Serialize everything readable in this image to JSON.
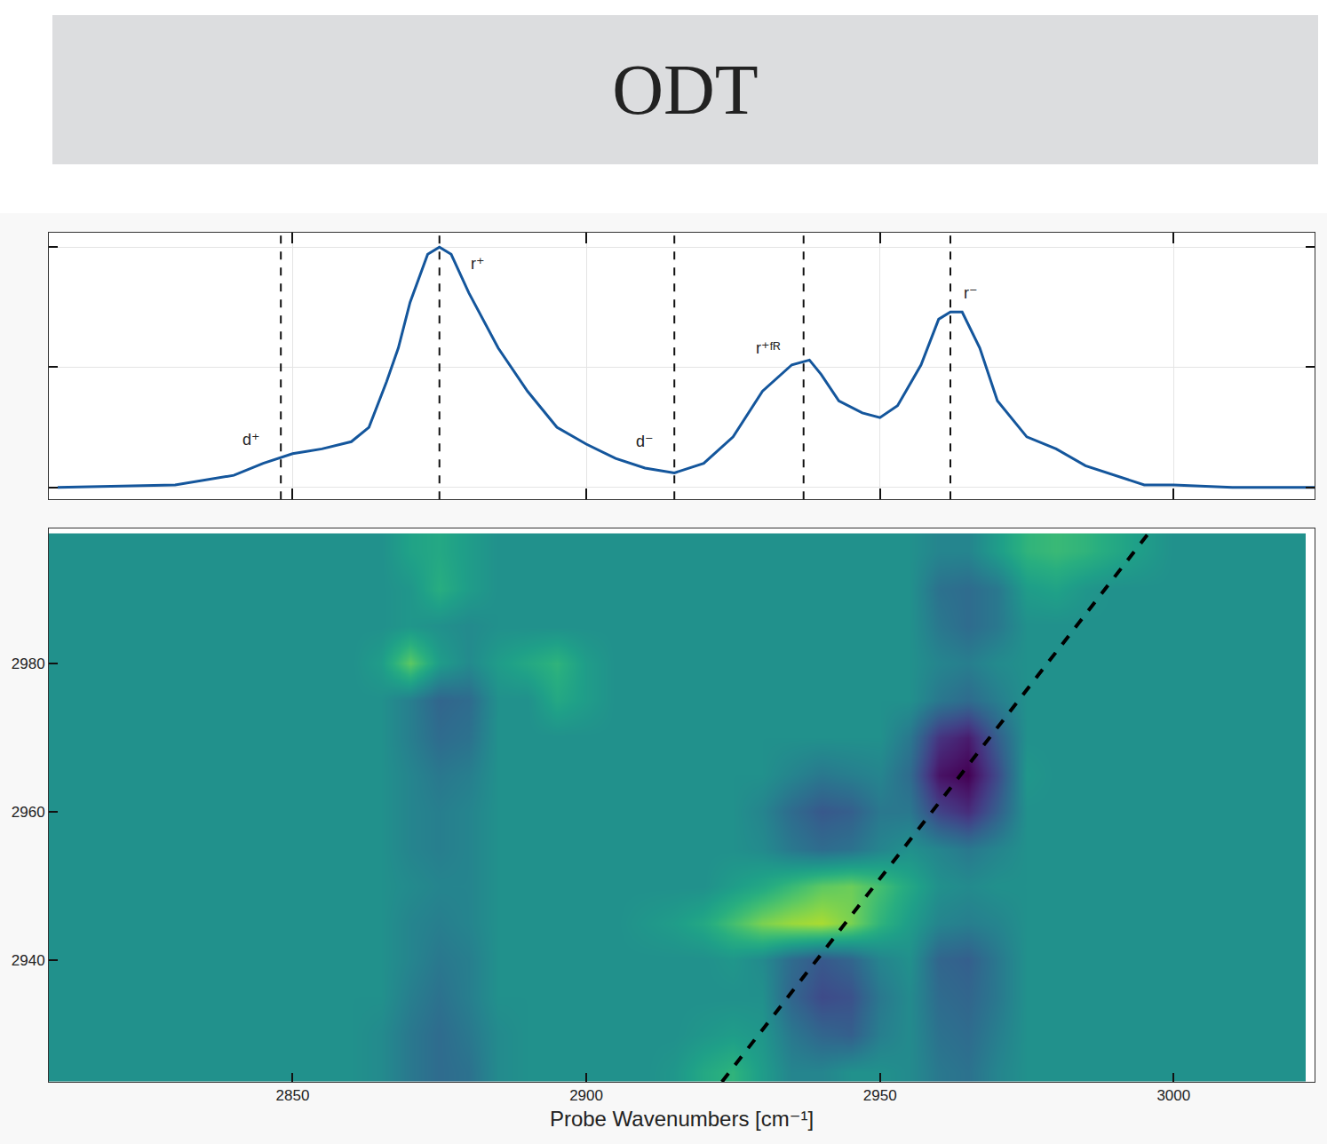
{
  "title": "ODT",
  "chart_data": [
    {
      "type": "line",
      "x": [
        2810,
        2830,
        2840,
        2845,
        2850,
        2855,
        2860,
        2863,
        2866,
        2868,
        2870,
        2873,
        2875,
        2877,
        2880,
        2885,
        2890,
        2895,
        2900,
        2905,
        2910,
        2915,
        2920,
        2925,
        2930,
        2935,
        2938,
        2940,
        2943,
        2947,
        2950,
        2953,
        2957,
        2960,
        2962,
        2964,
        2967,
        2970,
        2975,
        2980,
        2985,
        2990,
        2995,
        3000,
        3010,
        3024
      ],
      "values": [
        0,
        0.01,
        0.05,
        0.1,
        0.14,
        0.16,
        0.19,
        0.25,
        0.44,
        0.58,
        0.77,
        0.97,
        1.0,
        0.97,
        0.81,
        0.58,
        0.4,
        0.25,
        0.18,
        0.12,
        0.08,
        0.06,
        0.1,
        0.21,
        0.4,
        0.51,
        0.53,
        0.47,
        0.36,
        0.31,
        0.29,
        0.34,
        0.51,
        0.7,
        0.73,
        0.73,
        0.58,
        0.36,
        0.21,
        0.16,
        0.09,
        0.05,
        0.01,
        0.01,
        0,
        0
      ],
      "color": "#14569c",
      "xlim": [
        2808.5,
        3024
      ],
      "xticks": [
        2850,
        2900,
        2950,
        3000
      ],
      "ylim": [
        -0.05,
        1.06
      ],
      "yticks": [
        0,
        0.5,
        1
      ],
      "grid": true,
      "tick_labels": false,
      "vlines": [
        {
          "x": 2848,
          "label": "d⁺",
          "label_x": 2843,
          "label_y": 0.2
        },
        {
          "x": 2875,
          "label": "r⁺",
          "label_x": 2881.5,
          "label_y": 0.93
        },
        {
          "x": 2915,
          "label": "d⁻",
          "label_x": 2910,
          "label_y": 0.19
        },
        {
          "x": 2937,
          "label": "r⁺ᶠᴿ",
          "label_x": 2931,
          "label_y": 0.58
        },
        {
          "x": 2962,
          "label": "r⁻",
          "label_x": 2965.5,
          "label_y": 0.81
        }
      ]
    },
    {
      "type": "heatmap",
      "xlabel": "Probe Wavenumbers [cm⁻¹]",
      "x": [
        2810,
        2815,
        2820,
        2825,
        2830,
        2835,
        2840,
        2845,
        2850,
        2855,
        2860,
        2865,
        2870,
        2875,
        2880,
        2885,
        2890,
        2895,
        2900,
        2905,
        2910,
        2915,
        2920,
        2925,
        2930,
        2935,
        2940,
        2945,
        2950,
        2955,
        2960,
        2965,
        2970,
        2975,
        2980,
        2985,
        2990,
        2995,
        3000,
        3005,
        3010,
        3015,
        3020
      ],
      "y": [
        2925,
        2930,
        2935,
        2940,
        2945,
        2950,
        2955,
        2960,
        2965,
        2970,
        2975,
        2980,
        2985,
        2990,
        2995
      ],
      "cells": [
        [
          0,
          0,
          0,
          0,
          0,
          0,
          0,
          0,
          0,
          0,
          0,
          -0.05,
          -0.2,
          -0.3,
          -0.25,
          -0.05,
          0,
          0,
          0,
          0,
          0,
          0.05,
          0.2,
          0.3,
          0.1,
          -0.1,
          -0.1,
          0,
          0,
          -0.05,
          -0.2,
          -0.25,
          -0.1,
          0,
          0,
          0,
          0,
          0,
          0,
          0,
          0,
          0,
          0
        ],
        [
          0,
          0,
          0,
          0,
          0,
          0,
          0,
          0,
          0,
          0,
          0,
          -0.05,
          -0.2,
          -0.3,
          -0.2,
          -0.05,
          0,
          0,
          0,
          0,
          0,
          0,
          0.05,
          0.1,
          0.05,
          -0.2,
          -0.35,
          -0.4,
          -0.15,
          -0.05,
          -0.25,
          -0.3,
          -0.15,
          0,
          0,
          0,
          0,
          0,
          0,
          0,
          0,
          0,
          0
        ],
        [
          0,
          0,
          0,
          0,
          0,
          0,
          0,
          0,
          0,
          0,
          0,
          0,
          -0.15,
          -0.25,
          -0.15,
          0,
          0,
          0,
          0,
          0,
          0,
          0,
          0,
          0,
          0,
          -0.35,
          -0.55,
          -0.5,
          -0.2,
          -0.05,
          -0.3,
          -0.35,
          -0.2,
          0,
          0,
          0,
          0,
          0,
          0,
          0,
          0,
          0,
          0
        ],
        [
          0,
          0,
          0,
          0,
          0,
          0,
          0,
          0,
          0,
          0,
          0,
          0,
          -0.1,
          -0.2,
          -0.15,
          0,
          0,
          0,
          0,
          0,
          0,
          0,
          0,
          0.05,
          -0.05,
          -0.3,
          -0.45,
          -0.35,
          -0.1,
          0,
          -0.35,
          -0.4,
          -0.2,
          0,
          0,
          0,
          0,
          0,
          0,
          0,
          0,
          0,
          0
        ],
        [
          0,
          0,
          0,
          0,
          0,
          0,
          0,
          0,
          0,
          0,
          0,
          0,
          -0.1,
          -0.15,
          -0.1,
          0,
          0,
          0,
          0,
          0,
          0.05,
          0.1,
          0.2,
          0.4,
          0.6,
          0.7,
          0.75,
          0.6,
          0.3,
          0.1,
          -0.1,
          -0.15,
          -0.1,
          0,
          0,
          0,
          0,
          0,
          0,
          0,
          0,
          0,
          0
        ],
        [
          0,
          0,
          0,
          0,
          0,
          0,
          0,
          0,
          0,
          0,
          0,
          0,
          -0.05,
          -0.1,
          -0.1,
          0,
          0,
          0,
          0,
          0,
          0,
          0,
          0,
          0.1,
          0.2,
          0.35,
          0.5,
          0.55,
          0.4,
          0.2,
          0,
          -0.05,
          0,
          0,
          0,
          0,
          0,
          0,
          0,
          0,
          0,
          0,
          0
        ],
        [
          0,
          0,
          0,
          0,
          0,
          0,
          0,
          0,
          0,
          0,
          0,
          0,
          -0.1,
          -0.15,
          -0.1,
          0,
          0,
          0,
          0,
          0,
          0,
          0,
          0,
          0,
          -0.05,
          -0.2,
          -0.3,
          -0.25,
          -0.1,
          0,
          -0.1,
          -0.2,
          -0.1,
          0,
          0,
          0,
          0,
          0,
          0,
          0,
          0,
          0,
          0
        ],
        [
          0,
          0,
          0,
          0,
          0,
          0,
          0,
          0,
          0,
          0,
          0,
          0,
          -0.1,
          -0.15,
          -0.1,
          0,
          0,
          0,
          0,
          0,
          0,
          0,
          0,
          0,
          -0.1,
          -0.3,
          -0.45,
          -0.4,
          -0.2,
          -0.2,
          -0.6,
          -0.75,
          -0.4,
          0,
          0,
          0,
          0,
          0,
          0,
          0,
          0,
          0,
          0
        ],
        [
          0,
          0,
          0,
          0,
          0,
          0,
          0,
          0,
          0,
          0,
          0,
          0,
          -0.1,
          -0.2,
          -0.15,
          0,
          0,
          0,
          0,
          0,
          0,
          0,
          0,
          0,
          0,
          -0.1,
          -0.2,
          -0.15,
          -0.1,
          -0.3,
          -0.9,
          -1,
          -0.55,
          0.05,
          0,
          0,
          0,
          0,
          0,
          0,
          0,
          0,
          0
        ],
        [
          0,
          0,
          0,
          0,
          0,
          0,
          0,
          0,
          0,
          0,
          0,
          0,
          -0.15,
          -0.3,
          -0.25,
          0,
          0,
          0,
          0,
          0,
          0,
          0,
          0,
          0,
          0,
          0,
          0,
          0,
          0,
          -0.2,
          -0.7,
          -0.85,
          -0.4,
          0,
          0,
          0,
          0,
          0,
          0,
          0,
          0,
          0,
          0
        ],
        [
          0,
          0,
          0,
          0,
          0,
          0,
          0,
          0,
          0,
          0,
          0,
          0,
          -0.15,
          -0.35,
          -0.3,
          0,
          0,
          0.2,
          0.1,
          0,
          0,
          0,
          0,
          0,
          0,
          0,
          0,
          0,
          0,
          0,
          -0.2,
          -0.3,
          -0.15,
          0,
          0,
          0,
          0,
          0,
          0,
          0,
          0,
          0,
          0
        ],
        [
          0,
          0,
          0,
          0,
          0,
          0,
          0,
          0,
          0,
          0,
          0,
          0.1,
          0.5,
          0.1,
          -0.05,
          0.1,
          0.2,
          0.3,
          0.1,
          0,
          0,
          0,
          0,
          0,
          0,
          0,
          0,
          0,
          0,
          0,
          -0.1,
          -0.15,
          -0.05,
          0,
          0,
          0,
          0,
          0,
          0,
          0,
          0,
          0,
          0
        ],
        [
          0,
          0,
          0,
          0,
          0,
          0,
          0,
          0,
          0,
          0,
          0,
          0,
          0.05,
          0,
          -0.05,
          0,
          0,
          0,
          0,
          0,
          0,
          0,
          0,
          0,
          0,
          0,
          0,
          0,
          0,
          0,
          -0.2,
          -0.3,
          -0.2,
          0,
          0,
          0,
          0,
          0,
          0,
          0,
          0,
          0,
          0
        ],
        [
          0,
          0,
          0,
          0,
          0,
          0,
          0,
          0,
          0,
          0,
          0,
          0,
          0.05,
          0.25,
          0.1,
          0,
          0,
          0,
          0,
          0,
          0,
          0,
          0,
          0,
          0,
          0,
          0,
          0,
          0,
          0,
          -0.25,
          -0.3,
          -0.2,
          0.1,
          0.15,
          0.05,
          0,
          0,
          0,
          0,
          0,
          0,
          0
        ],
        [
          0,
          0,
          0,
          0,
          0,
          0,
          0,
          0,
          0,
          0,
          0,
          0,
          0.15,
          0.2,
          0.1,
          0,
          0,
          0,
          0,
          0,
          0,
          0,
          0,
          0,
          0,
          0,
          0,
          0,
          0,
          0,
          -0.1,
          -0.1,
          0.1,
          0.3,
          0.35,
          0.3,
          0.2,
          0.1,
          0,
          0,
          0,
          0,
          0
        ]
      ],
      "zlim": [
        -1,
        1
      ],
      "xlim": [
        2808.5,
        3024
      ],
      "xticks": [
        2850,
        2900,
        2950,
        3000
      ],
      "ylim": [
        2923.6,
        2998.2
      ],
      "yticks": [
        2940,
        2960,
        2980
      ],
      "grid": false,
      "diagonal": {
        "x": [
          2923.1,
          2996.4
        ],
        "y": [
          2923.6,
          2998.2
        ],
        "line_style": "dash",
        "color": "#000000"
      }
    }
  ]
}
